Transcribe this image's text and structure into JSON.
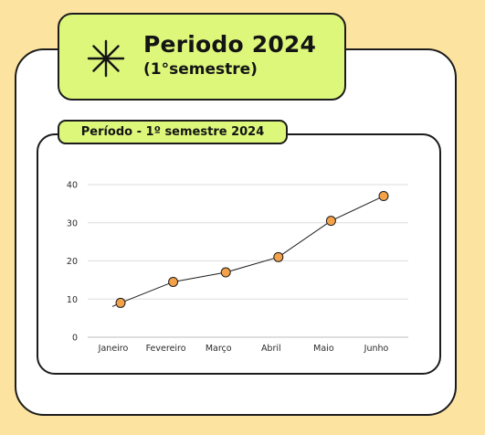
{
  "header": {
    "title": "Periodo 2024",
    "subtitle": "(1°semestre)",
    "icon": "asterisk-icon"
  },
  "colors": {
    "background": "#FCE3A0",
    "badge": "#DDF77B",
    "card": "#FFFFFF",
    "outline": "#1C1C1C",
    "marker": "#F4A24A"
  },
  "chart_data": {
    "type": "line",
    "title": "Período - 1º semestre 2024",
    "xlabel": "",
    "ylabel": "",
    "categories": [
      "Janeiro",
      "Fevereiro",
      "Março",
      "Abril",
      "Maio",
      "Junho"
    ],
    "values": [
      9,
      14.5,
      17,
      21,
      30.5,
      37
    ],
    "ylim": [
      0,
      40
    ],
    "yticks": [
      "0",
      "10",
      "20",
      "30",
      "40"
    ],
    "grid": true,
    "legend": "none"
  }
}
